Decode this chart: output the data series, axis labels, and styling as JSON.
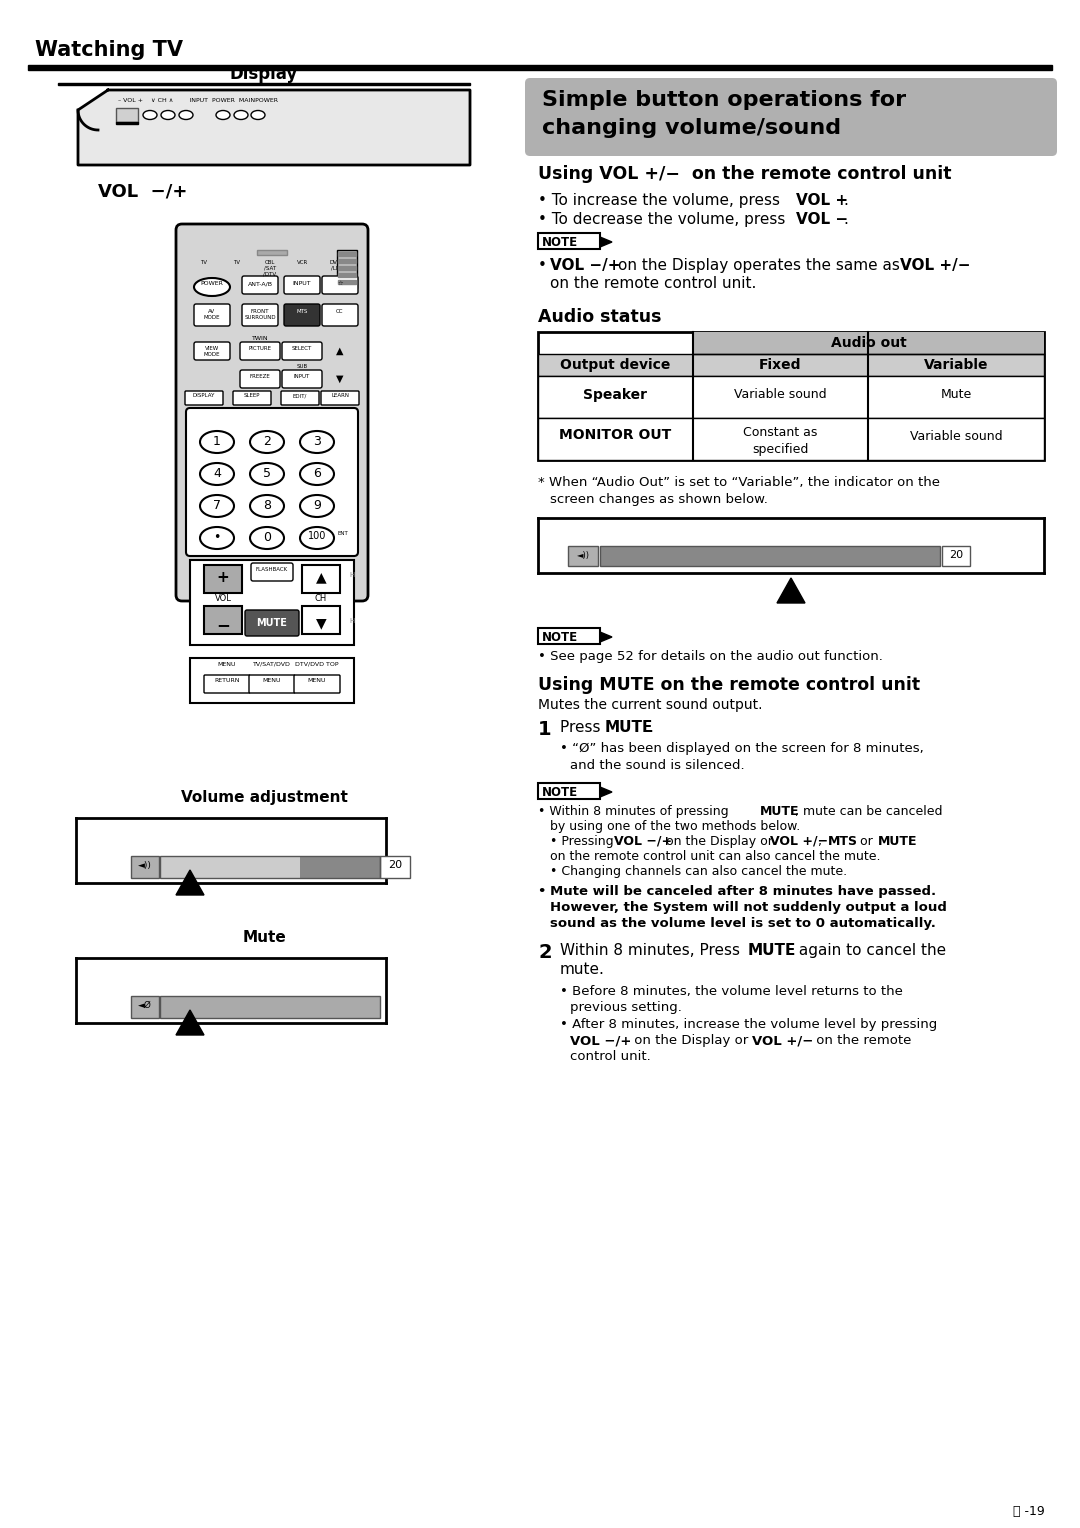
{
  "page_bg": "#ffffff",
  "watching_tv_text": "Watching TV",
  "display_text": "Display",
  "vol_label": "VOL  −/+",
  "section_title_line1": "Simple button operations for",
  "section_title_line2": "changing volume/sound",
  "section_title_bg": "#b0b0b0",
  "using_vol_title": "Using VOL +/−  on the remote control unit",
  "audio_status_title": "Audio status",
  "asterisk_note_line1": "When “Audio Out” is set to “Variable”, the indicator on the",
  "asterisk_note_line2": "screen changes as shown below.",
  "note2": "• See page 52 for details on the audio out function.",
  "volume_adj_title": "Volume adjustment",
  "mute_title": "Mute",
  "using_mute_title": "Using MUTE on the remote control unit",
  "mute_desc": "Mutes the current sound output.",
  "footer": "Ⓢ -19"
}
